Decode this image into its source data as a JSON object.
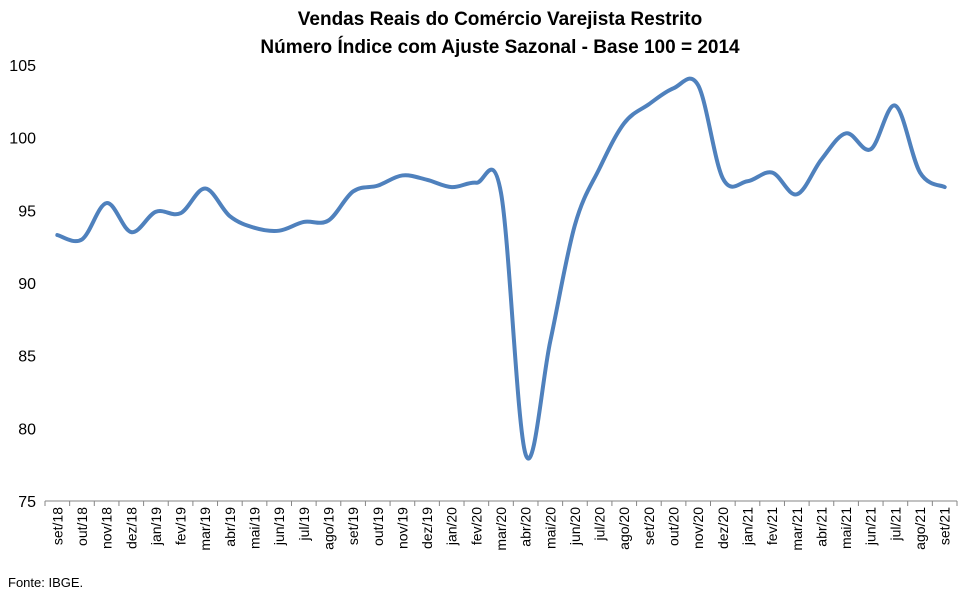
{
  "chart_data": {
    "type": "line",
    "title": "Vendas Reais do Comércio Varejista Restrito",
    "subtitle": "Número Índice com Ajuste Sazonal - Base 100 = 2014",
    "ylim": [
      75,
      105
    ],
    "yticks": [
      75,
      80,
      85,
      90,
      95,
      100,
      105
    ],
    "grid": false,
    "legend": "none",
    "categories": [
      "set/18",
      "out/18",
      "nov/18",
      "dez/18",
      "jan/19",
      "fev/19",
      "mar/19",
      "abr/19",
      "mai/19",
      "jun/19",
      "jul/19",
      "ago/19",
      "set/19",
      "out/19",
      "nov/19",
      "dez/19",
      "jan/20",
      "fev/20",
      "mar/20",
      "abr/20",
      "mai/20",
      "jun/20",
      "jul/20",
      "ago/20",
      "set/20",
      "out/20",
      "nov/20",
      "dez/20",
      "jan/21",
      "fev/21",
      "mar/21",
      "abr/21",
      "mai/21",
      "jun/21",
      "jul/21",
      "ago/21",
      "set/21"
    ],
    "series": [
      {
        "color": "#4f81bd",
        "values": [
          93.3,
          93.0,
          95.5,
          93.5,
          94.9,
          94.8,
          96.5,
          94.6,
          93.8,
          93.6,
          94.2,
          94.3,
          96.3,
          96.7,
          97.4,
          97.1,
          96.6,
          96.9,
          96.2,
          78.2,
          86.0,
          94.0,
          97.9,
          101.0,
          102.3,
          103.4,
          103.6,
          97.2,
          97.0,
          97.6,
          96.1,
          98.5,
          100.3,
          99.2,
          102.2,
          97.6,
          96.6
        ]
      }
    ]
  },
  "source": "Fonte: IBGE."
}
